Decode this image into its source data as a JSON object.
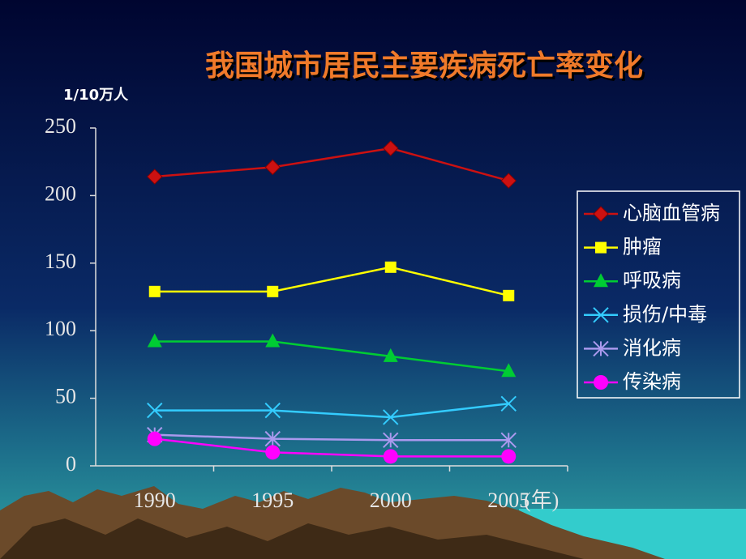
{
  "chart_data": {
    "type": "line",
    "title": "我国城市居民主要疾病死亡率变化",
    "y_label": "1/10万人",
    "x_label": "(年)",
    "categories": [
      "1990",
      "1995",
      "2000",
      "2005"
    ],
    "series": [
      {
        "name": "心脑血管病",
        "color": "#cc1111",
        "marker": "diamond",
        "values": [
          214,
          221,
          235,
          211
        ]
      },
      {
        "name": "肿瘤",
        "color": "#ffff00",
        "marker": "square",
        "values": [
          129,
          129,
          147,
          126
        ]
      },
      {
        "name": "呼吸病",
        "color": "#00cc33",
        "marker": "triangle",
        "values": [
          92,
          92,
          81,
          70
        ]
      },
      {
        "name": "损伤/中毒",
        "color": "#33ccff",
        "marker": "x",
        "values": [
          41,
          41,
          36,
          46
        ]
      },
      {
        "name": "消化病",
        "color": "#aa99ee",
        "marker": "asterisk",
        "values": [
          23,
          20,
          19,
          19
        ]
      },
      {
        "name": "传染病",
        "color": "#ff00ff",
        "marker": "circle",
        "values": [
          20,
          10,
          7,
          7
        ]
      }
    ],
    "ylim": [
      0,
      250
    ],
    "yticks": [
      0,
      50,
      100,
      150,
      200,
      250
    ],
    "legend": "right"
  }
}
